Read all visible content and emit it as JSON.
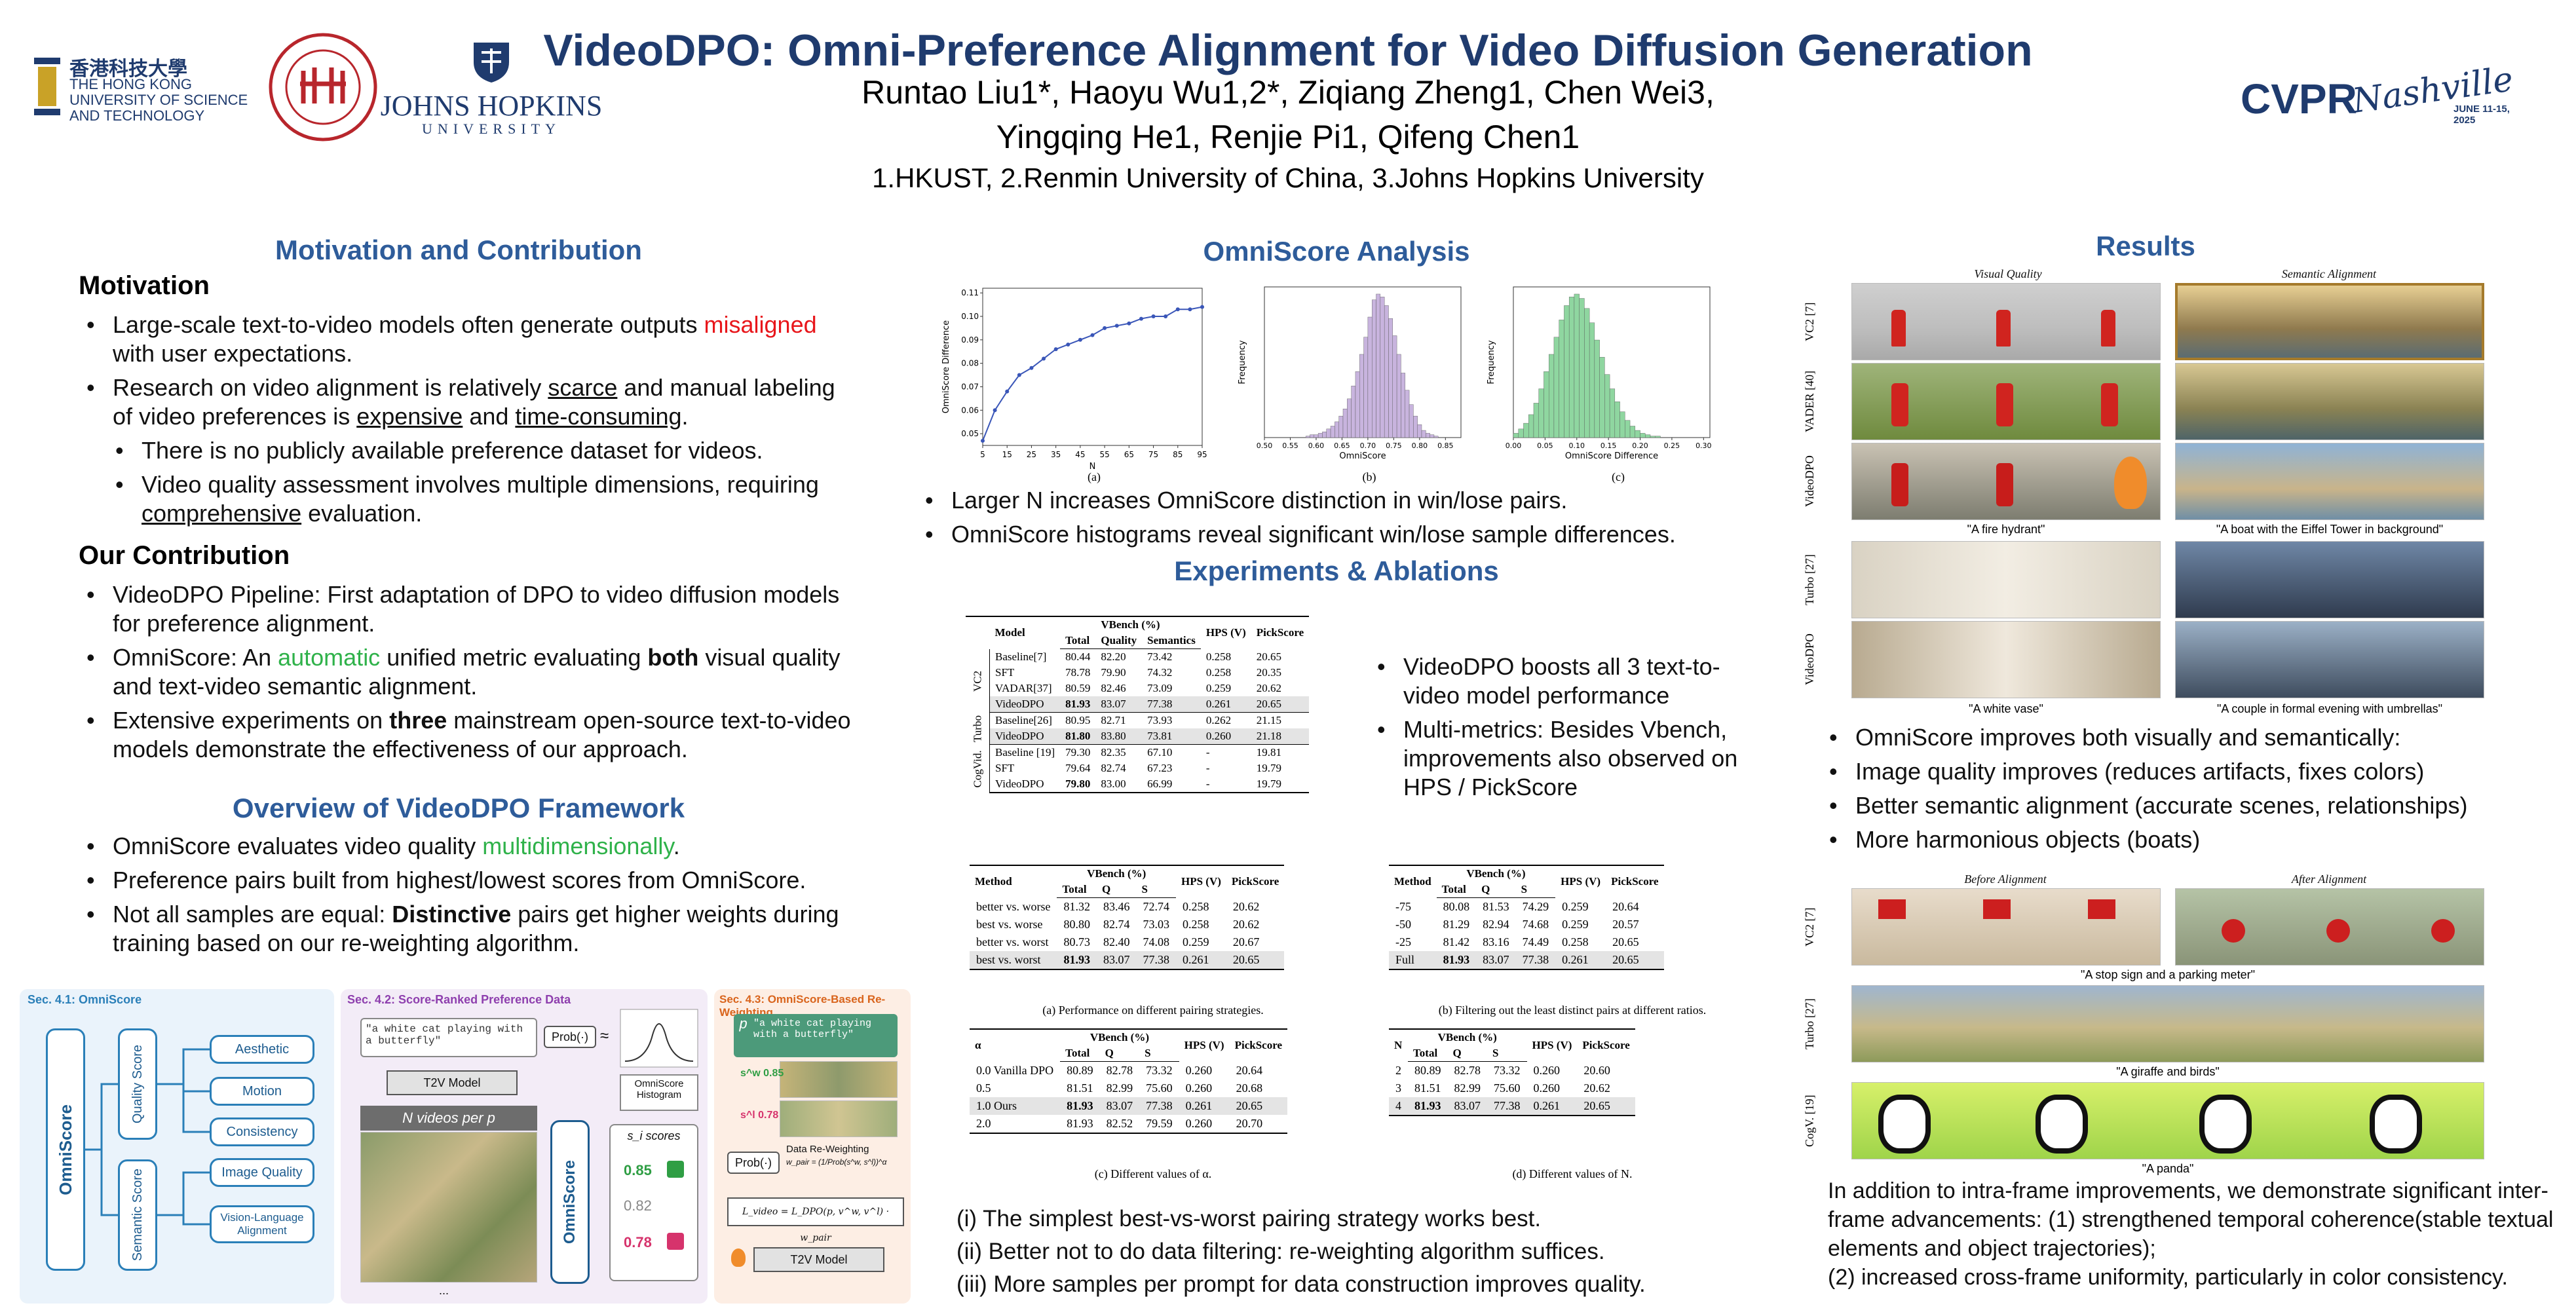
{
  "header": {
    "title": "VideoDPO: Omni-Preference Alignment for Video Diffusion Generation",
    "authors_line1": "Runtao Liu1*, Haoyu Wu1,2*, Ziqiang Zheng1, Chen Wei3,",
    "authors_line2": "Yingqing He1, Renjie Pi1, Qifeng Chen1",
    "affiliations": "1.HKUST, 2.Renmin University of China, 3.Johns Hopkins University",
    "logo_hkust_cn": "香港科技大學",
    "logo_hkust_en1": "THE HONG KONG",
    "logo_hkust_en2": "UNIVERSITY OF SCIENCE",
    "logo_hkust_en3": "AND TECHNOLOGY",
    "logo_jhu1": "JOHNS HOPKINS",
    "logo_jhu2": "UNIVERSITY",
    "logo_cvpr": "CVPR",
    "logo_cvpr_city": "Nashville",
    "logo_cvpr_date": "JUNE 11-15, 2025"
  },
  "motivation": {
    "section_title": "Motivation and Contribution",
    "heading": "Motivation",
    "b1_pre": "Large-scale text-to-video models often generate outputs ",
    "b1_red": "misaligned",
    "b1_post": " with user expectations.",
    "b2_pre": "Research on video alignment is relatively ",
    "b2_u1": "scarce",
    "b2_mid": " and manual labeling of video preferences is ",
    "b2_u2": "expensive",
    "b2_and": " and ",
    "b2_u3": "time-consuming",
    "b2_end": ".",
    "b2a": "There is no publicly available preference dataset for videos.",
    "b2b_pre": "Video quality assessment involves multiple dimensions, requiring ",
    "b2b_u": "comprehensive",
    "b2b_post": " evaluation."
  },
  "contribution": {
    "heading": "Our Contribution",
    "c1": "VideoDPO Pipeline: First adaptation of DPO to video diffusion models for preference alignment.",
    "c2_pre": "OmniScore: An ",
    "c2_green": "automatic",
    "c2_mid": " unified metric evaluating ",
    "c2_bold": "both",
    "c2_post": " visual quality and text-video semantic alignment.",
    "c3_pre": "Extensive experiments on ",
    "c3_bold": "three",
    "c3_post": " mainstream open-source text-to-video models demonstrate the effectiveness of our approach."
  },
  "overview": {
    "section_title": "Overview of VideoDPO Framework",
    "o1_pre": "OmniScore evaluates video quality ",
    "o1_green": "multidimensionally",
    "o1_post": ".",
    "o2": "Preference pairs built from highest/lowest scores from OmniScore.",
    "o3_pre": "Not all samples are equal: ",
    "o3_bold": "Distinctive",
    "o3_post": " pairs get higher weights during training based on our re-weighting algorithm."
  },
  "diagram": {
    "sec1": "Sec. 4.1: OmniScore",
    "sec2": "Sec. 4.2: Score-Ranked Preference Data",
    "sec3": "Sec. 4.3: OmniScore-Based Re-Weighting",
    "omniscore": "OmniScore",
    "quality_score": "Quality Score",
    "semantic_score": "Semantic Score",
    "aesthetic": "Aesthetic",
    "motion": "Motion",
    "consistency": "Consistency",
    "image_quality": "Image Quality",
    "vla": "Vision-Language Alignment",
    "prompt": "\"a white cat playing with a butterfly\"",
    "prob": "Prob(·)",
    "approx": "≈",
    "t2v": "T2V Model",
    "n_videos": "N videos per p",
    "hist": "OmniScore Histogram",
    "scores": "s_i scores",
    "s1": "0.85",
    "s2": "0.82",
    "s3": "0.78",
    "dots": "...",
    "p": "p",
    "reweight": "Data Re-Weighting",
    "wpair": "w_pair = (1/Prob(s^w, s^l))^α",
    "loss": "L_video = L_DPO(p, v^w, v^l) · w_pair",
    "sw": "s^w 0.85",
    "sl": "s^l 0.78"
  },
  "omniscore_analysis": {
    "section_title": "OmniScore Analysis",
    "cap_a": "(a)",
    "cap_b": "(b)",
    "cap_c": "(c)",
    "bullet1": "Larger N increases OmniScore distinction in win/lose pairs.",
    "bullet2": "OmniScore histograms reveal significant win/lose sample differences."
  },
  "chart_data": [
    {
      "type": "line",
      "xlabel": "N",
      "ylabel": "OmniScore Difference",
      "x": [
        5,
        10,
        15,
        20,
        25,
        30,
        35,
        40,
        45,
        50,
        55,
        60,
        65,
        70,
        75,
        80,
        85,
        90,
        95
      ],
      "y": [
        0.047,
        0.06,
        0.068,
        0.075,
        0.078,
        0.082,
        0.086,
        0.088,
        0.09,
        0.092,
        0.095,
        0.096,
        0.097,
        0.099,
        0.1,
        0.1,
        0.103,
        0.103,
        0.104
      ],
      "xticks": [
        "5",
        "15",
        "25",
        "35",
        "45",
        "55",
        "65",
        "75",
        "85",
        "95"
      ],
      "yticks": [
        "0.05",
        "0.06",
        "0.07",
        "0.08",
        "0.09",
        "0.10",
        "0.11"
      ],
      "ylim": [
        0.045,
        0.112
      ],
      "xlim": [
        5,
        95
      ],
      "color": "#3a56b8"
    },
    {
      "type": "bar",
      "xlabel": "OmniScore",
      "ylabel": "Frequency",
      "xticks": [
        "0.50",
        "0.55",
        "0.60",
        "0.65",
        "0.70",
        "0.75",
        "0.80",
        "0.85"
      ],
      "xlim": [
        0.5,
        0.88
      ],
      "bin_width": 0.008,
      "bin_start": 0.58,
      "values": [
        1,
        2,
        2,
        3,
        4,
        6,
        8,
        11,
        15,
        20,
        27,
        36,
        46,
        58,
        70,
        84,
        96,
        100,
        98,
        92,
        83,
        71,
        58,
        45,
        33,
        23,
        15,
        9,
        5,
        3,
        2,
        1
      ],
      "color": "#c8b4de"
    },
    {
      "type": "bar",
      "xlabel": "OmniScore Difference",
      "ylabel": "Frequency",
      "xticks": [
        "0.00",
        "0.05",
        "0.10",
        "0.15",
        "0.20",
        "0.25",
        "0.30"
      ],
      "xlim": [
        0.0,
        0.31
      ],
      "bin_width": 0.008,
      "bin_start": 0.0,
      "values": [
        3,
        6,
        10,
        16,
        24,
        34,
        46,
        58,
        70,
        82,
        92,
        98,
        100,
        97,
        90,
        80,
        68,
        56,
        44,
        34,
        25,
        18,
        12,
        8,
        5,
        3,
        2,
        1,
        1
      ],
      "color": "#8fd6a0"
    }
  ],
  "experiments": {
    "section_title": "Experiments & Ablations",
    "main_table": {
      "headers": [
        "Model",
        "VBench (%)",
        "Total",
        "Quality",
        "Semantics",
        "HPS (V)",
        "PickScore"
      ],
      "groups": [
        {
          "name": "VC2",
          "rows": [
            [
              "Baseline[7]",
              "80.44",
              "82.20",
              "73.42",
              "0.258",
              "20.65"
            ],
            [
              "SFT",
              "78.78",
              "79.90",
              "74.32",
              "0.258",
              "20.35"
            ],
            [
              "VADAR[37]",
              "80.59",
              "82.46",
              "73.09",
              "0.259",
              "20.62"
            ],
            [
              "VideoDPO",
              "81.93",
              "83.07",
              "77.38",
              "0.261",
              "20.65"
            ]
          ]
        },
        {
          "name": "Turbo",
          "rows": [
            [
              "Baseline[26]",
              "80.95",
              "82.71",
              "73.93",
              "0.262",
              "21.15"
            ],
            [
              "VideoDPO",
              "81.80",
              "83.80",
              "73.81",
              "0.260",
              "21.18"
            ]
          ]
        },
        {
          "name": "CogVid.",
          "rows": [
            [
              "Baseline [19]",
              "79.30",
              "82.35",
              "67.10",
              "-",
              "19.81"
            ],
            [
              "SFT",
              "79.64",
              "82.74",
              "67.23",
              "-",
              "19.79"
            ],
            [
              "VideoDPO",
              "79.80",
              "83.00",
              "66.99",
              "-",
              "19.79"
            ]
          ]
        }
      ]
    },
    "side_b1": "VideoDPO boosts all 3 text-to-video model performance",
    "side_b2": "Multi-metrics: Besides Vbench, improvements also observed on HPS / PickScore",
    "table_a": {
      "caption": "(a) Performance on different pairing strategies.",
      "headers": [
        "Method",
        "VBench (%)",
        "Total",
        "Q",
        "S",
        "HPS (V)",
        "PickScore"
      ],
      "rows": [
        [
          "better vs. worse",
          "81.32",
          "83.46",
          "72.74",
          "0.258",
          "20.62"
        ],
        [
          "best vs. worse",
          "80.80",
          "82.74",
          "73.03",
          "0.258",
          "20.62"
        ],
        [
          "better vs. worst",
          "80.73",
          "82.40",
          "74.08",
          "0.259",
          "20.67"
        ],
        [
          "best vs. worst",
          "81.93",
          "83.07",
          "77.38",
          "0.261",
          "20.65"
        ]
      ]
    },
    "table_b": {
      "caption": "(b) Filtering out the least distinct pairs at different ratios.",
      "headers": [
        "Method",
        "VBench (%)",
        "Total",
        "Q",
        "S",
        "HPS (V)",
        "PickScore"
      ],
      "rows": [
        [
          "-75",
          "80.08",
          "81.53",
          "74.29",
          "0.259",
          "20.64"
        ],
        [
          "-50",
          "81.29",
          "82.94",
          "74.68",
          "0.259",
          "20.57"
        ],
        [
          "-25",
          "81.42",
          "83.16",
          "74.49",
          "0.258",
          "20.65"
        ],
        [
          "Full",
          "81.93",
          "83.07",
          "77.38",
          "0.261",
          "20.65"
        ]
      ]
    },
    "table_c": {
      "caption": "(c) Different values of α.",
      "headers": [
        "α",
        "VBench (%)",
        "Total",
        "Q",
        "S",
        "HPS (V)",
        "PickScore"
      ],
      "rows": [
        [
          "0.0 Vanilla DPO",
          "80.89",
          "82.78",
          "73.32",
          "0.260",
          "20.64"
        ],
        [
          "0.5",
          "81.51",
          "82.99",
          "75.60",
          "0.260",
          "20.68"
        ],
        [
          "1.0 Ours",
          "81.93",
          "83.07",
          "77.38",
          "0.261",
          "20.65"
        ],
        [
          "2.0",
          "81.93",
          "82.52",
          "79.59",
          "0.260",
          "20.70"
        ]
      ]
    },
    "table_d": {
      "caption": "(d) Different values of N.",
      "headers": [
        "N",
        "VBench (%)",
        "Total",
        "Q",
        "S",
        "HPS (V)",
        "PickScore"
      ],
      "rows": [
        [
          "2",
          "80.89",
          "82.78",
          "73.32",
          "0.260",
          "20.60"
        ],
        [
          "3",
          "81.51",
          "82.99",
          "75.60",
          "0.260",
          "20.62"
        ],
        [
          "4",
          "81.93",
          "83.07",
          "77.38",
          "0.261",
          "20.65"
        ]
      ]
    },
    "find1": "(i) The simplest best-vs-worst pairing strategy works best.",
    "find2": "(ii) Better not to do data filtering: re-weighting algorithm suffices.",
    "find3": "(iii) More samples per prompt for data construction improves quality."
  },
  "results": {
    "section_title": "Results",
    "col_visual": "Visual Quality",
    "col_semantic": "Semantic Alignment",
    "row_vc2": "VC2 [7]",
    "row_vader": "VADER [40]",
    "row_videodpo": "VideoDPO",
    "row_turbo": "Turbo [27]",
    "row_videodpo2": "VideoDPO",
    "cap_hydrant": "\"A fire hydrant\"",
    "cap_boat": "\"A boat with the Eiffel Tower in background\"",
    "cap_vase": "\"A white vase\"",
    "cap_couple": "\"A couple in formal evening with umbrellas\"",
    "r1": "OmniScore improves both visually and semantically:",
    "r2": "Image quality improves (reduces artifacts, fixes colors)",
    "r3": "Better semantic alignment (accurate scenes, relationships)",
    "r4": "More harmonious objects (boats)",
    "col_before": "Before Alignment",
    "col_after": "After Alignment",
    "row2_vc2": "VC2 [7]",
    "row2_turbo": "Turbo [27]",
    "row2_cog": "CogV. [19]",
    "cap_stop": "\"A stop sign and a parking meter\"",
    "cap_giraffe": "\"A giraffe and birds\"",
    "cap_panda": "\"A panda\"",
    "para": "In addition to intra-frame improvements, we demonstrate significant inter-frame advancements: (1) strengthened temporal coherence(stable textual elements and object trajectories);",
    "para2": "(2) increased cross-frame uniformity, particularly in color consistency."
  }
}
